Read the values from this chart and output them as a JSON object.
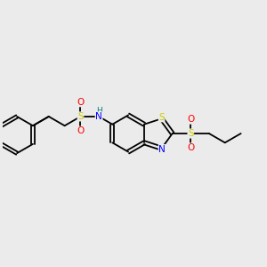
{
  "bg_color": "#ebebeb",
  "bond_color": "#000000",
  "atom_colors": {
    "S": "#cccc00",
    "O": "#ff0000",
    "N": "#0000ff",
    "H": "#008080",
    "C": "#000000"
  },
  "figsize": [
    3.0,
    3.0
  ],
  "dpi": 100
}
